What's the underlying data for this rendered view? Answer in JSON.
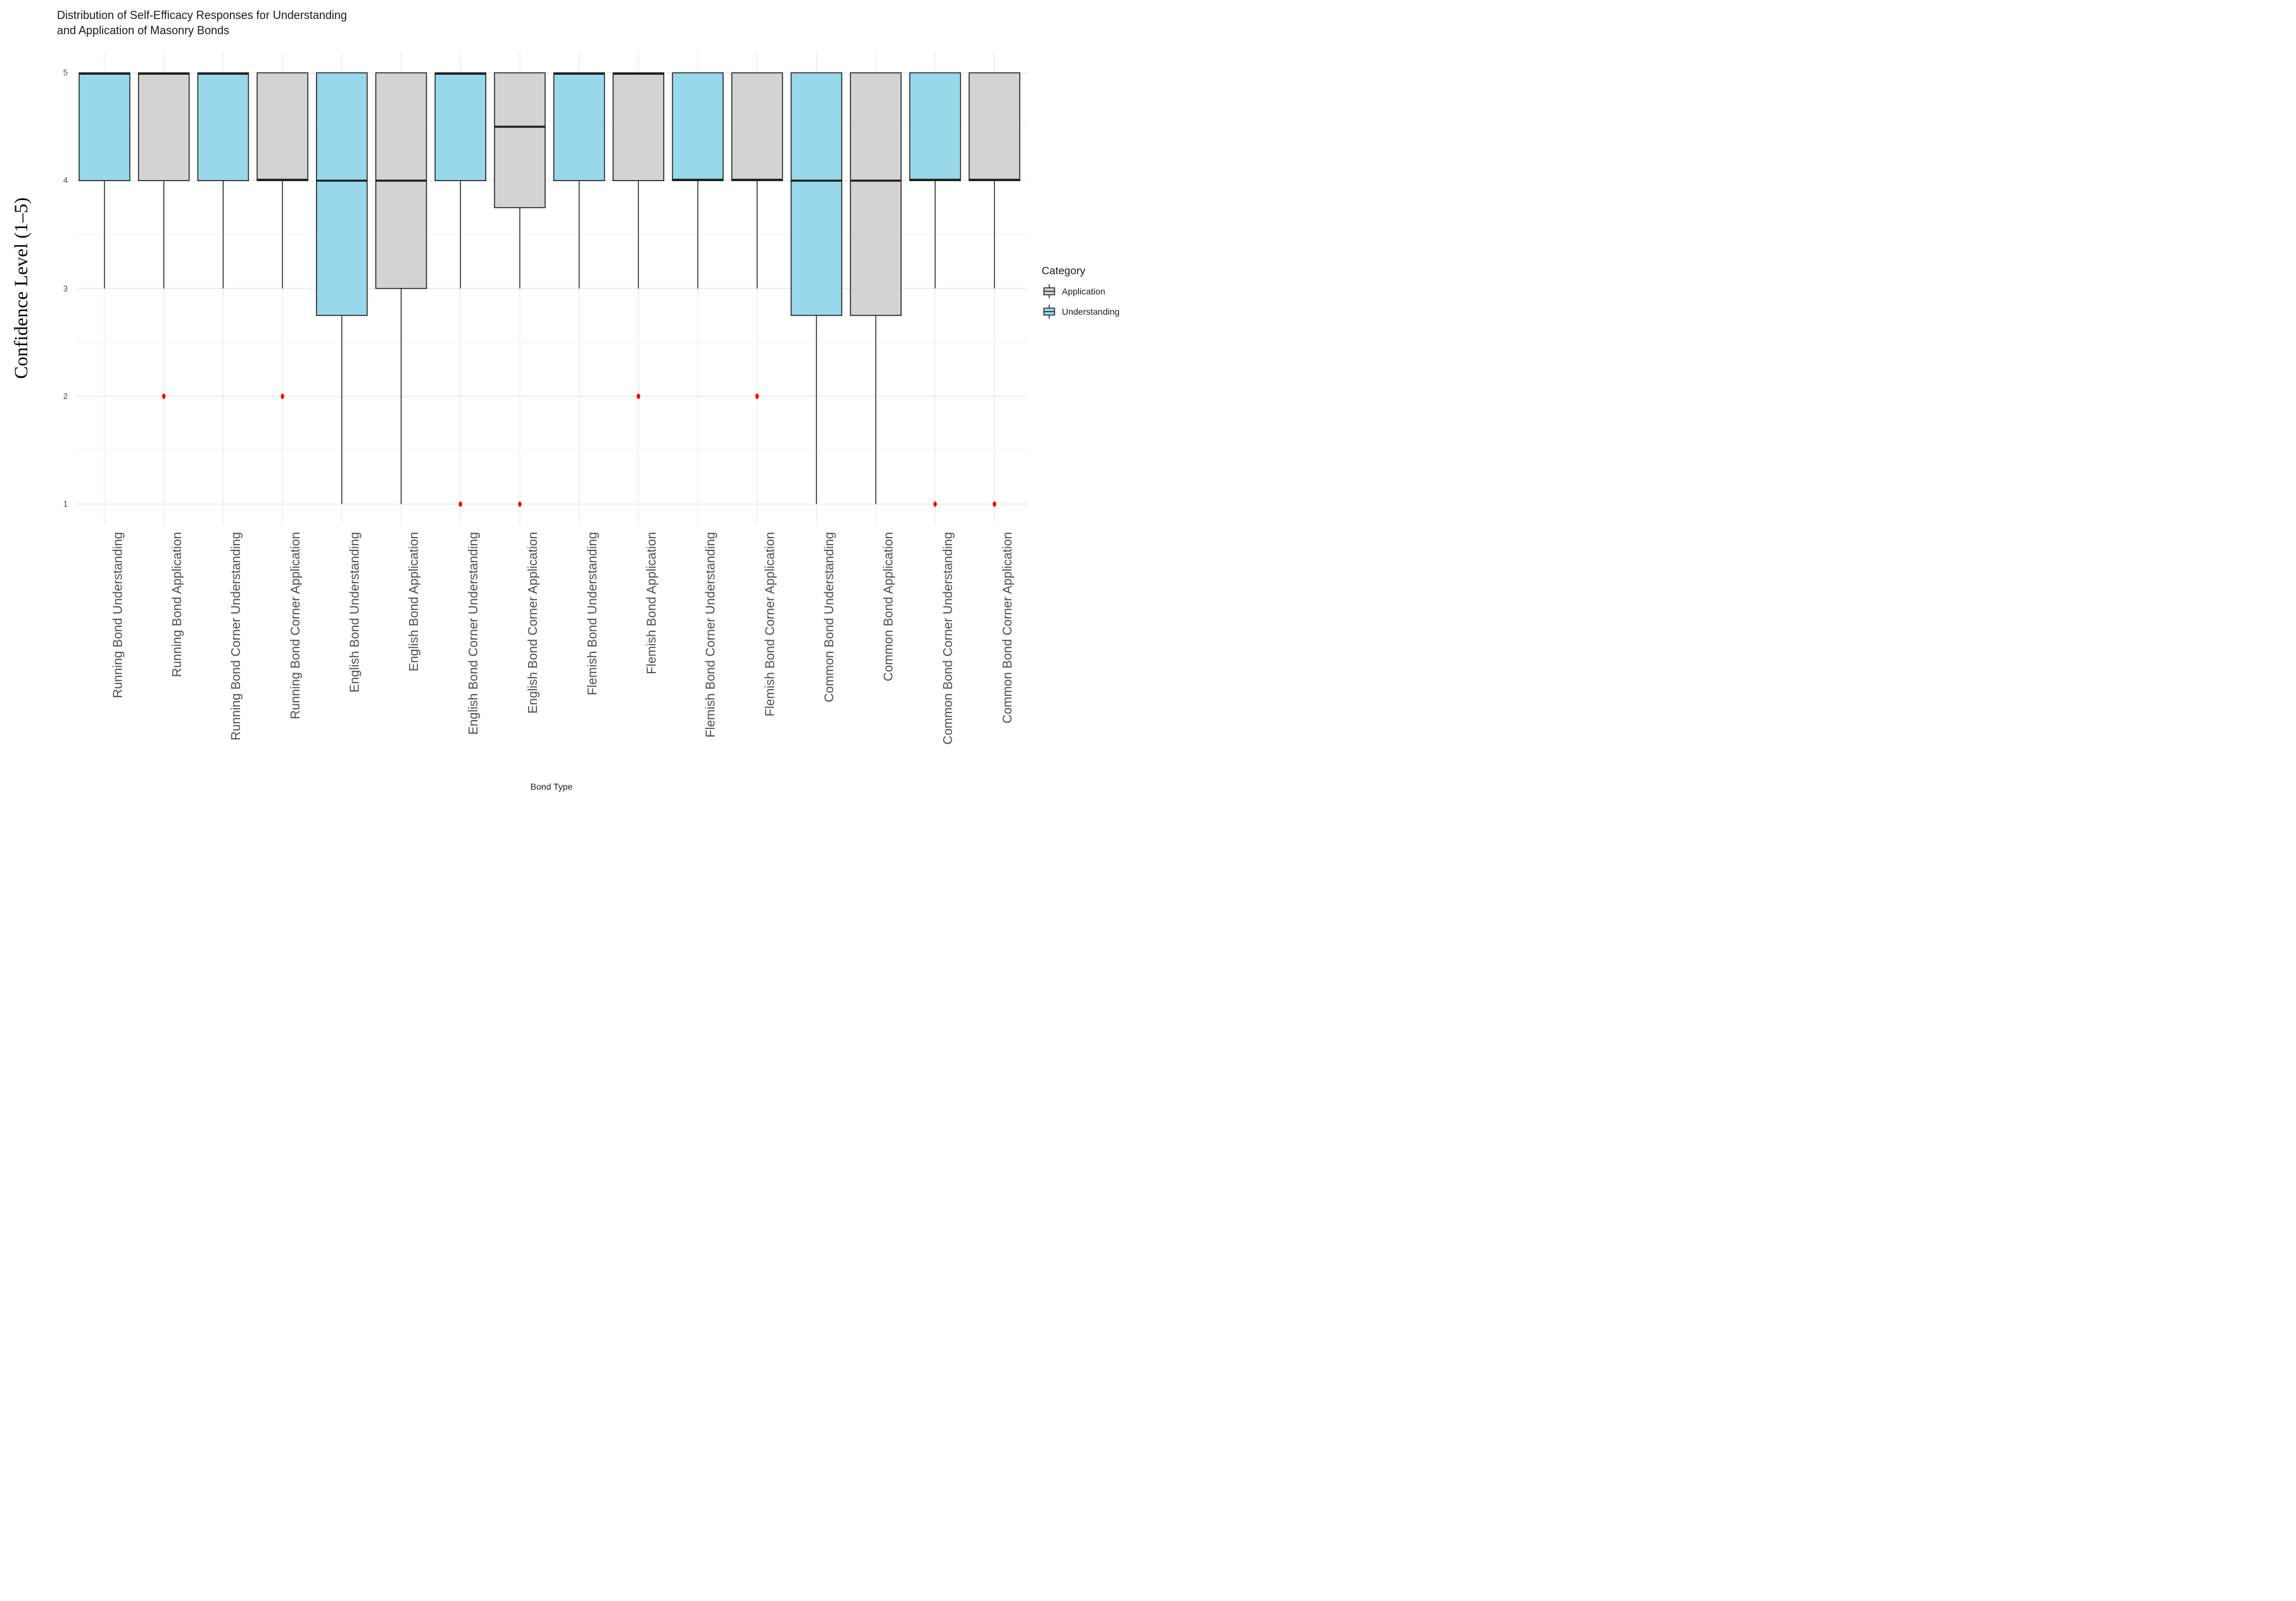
{
  "title": {
    "line1": "Distribution of Self-Efficacy Responses for Understanding",
    "line2": "and Application of Masonry Bonds"
  },
  "axes": {
    "y_title": "Confidence Level (1–5)",
    "x_title": "Bond Type",
    "y_tick_labels": [
      "5",
      "4",
      "3",
      "2",
      "1"
    ]
  },
  "legend": {
    "title": "Category",
    "items": [
      {
        "label": "Application",
        "group": "Application"
      },
      {
        "label": "Understanding",
        "group": "Understanding"
      }
    ]
  },
  "colors": {
    "groups": {
      "Understanding": "#99d8ea",
      "Application": "#d3d3d3"
    },
    "outlier": "#ff0000",
    "box_border": "#1f1f1f",
    "grid_major": "#e5e5e5",
    "grid_minor": "#f1f1f1",
    "grid_vertical": "#e8e8e8",
    "tick_text": "#4d4d4d"
  },
  "chart_data": {
    "type": "boxplot",
    "title": "Distribution of Self-Efficacy Responses for Understanding and Application of Masonry Bonds",
    "xlabel": "Bond Type",
    "ylabel": "Confidence Level (1–5)",
    "ylim": [
      1,
      5
    ],
    "yticks": [
      1,
      2,
      3,
      4,
      5
    ],
    "grid": "horizontal major+minor, vertical major",
    "legend_position": "right",
    "boxes": [
      {
        "category": "Running Bond Understanding",
        "group": "Understanding",
        "q1": 4,
        "median": 5,
        "q3": 5,
        "whisker_low": 3,
        "whisker_high": 5,
        "outliers": []
      },
      {
        "category": "Running Bond Application",
        "group": "Application",
        "q1": 4,
        "median": 5,
        "q3": 5,
        "whisker_low": 3,
        "whisker_high": 5,
        "outliers": [
          2
        ]
      },
      {
        "category": "Running Bond Corner Understanding",
        "group": "Understanding",
        "q1": 4,
        "median": 5,
        "q3": 5,
        "whisker_low": 3,
        "whisker_high": 5,
        "outliers": []
      },
      {
        "category": "Running Bond Corner Application",
        "group": "Application",
        "q1": 4,
        "median": 4,
        "q3": 5,
        "whisker_low": 3,
        "whisker_high": 5,
        "outliers": [
          2
        ]
      },
      {
        "category": "English Bond Understanding",
        "group": "Understanding",
        "q1": 2.75,
        "median": 4,
        "q3": 5,
        "whisker_low": 1,
        "whisker_high": 5,
        "outliers": []
      },
      {
        "category": "English Bond Application",
        "group": "Application",
        "q1": 3,
        "median": 4,
        "q3": 5,
        "whisker_low": 1,
        "whisker_high": 5,
        "outliers": []
      },
      {
        "category": "English Bond Corner Understanding",
        "group": "Understanding",
        "q1": 4,
        "median": 5,
        "q3": 5,
        "whisker_low": 3,
        "whisker_high": 5,
        "outliers": [
          1
        ]
      },
      {
        "category": "English Bond Corner Application",
        "group": "Application",
        "q1": 3.75,
        "median": 4.5,
        "q3": 5,
        "whisker_low": 3,
        "whisker_high": 5,
        "outliers": [
          1
        ]
      },
      {
        "category": "Flemish Bond Understanding",
        "group": "Understanding",
        "q1": 4,
        "median": 5,
        "q3": 5,
        "whisker_low": 3,
        "whisker_high": 5,
        "outliers": []
      },
      {
        "category": "Flemish Bond Application",
        "group": "Application",
        "q1": 4,
        "median": 5,
        "q3": 5,
        "whisker_low": 3,
        "whisker_high": 5,
        "outliers": [
          2
        ]
      },
      {
        "category": "Flemish Bond Corner Understanding",
        "group": "Understanding",
        "q1": 4,
        "median": 4,
        "q3": 5,
        "whisker_low": 3,
        "whisker_high": 5,
        "outliers": []
      },
      {
        "category": "Flemish Bond Corner Application",
        "group": "Application",
        "q1": 4,
        "median": 4,
        "q3": 5,
        "whisker_low": 3,
        "whisker_high": 5,
        "outliers": [
          2
        ]
      },
      {
        "category": "Common Bond Understanding",
        "group": "Understanding",
        "q1": 2.75,
        "median": 4,
        "q3": 5,
        "whisker_low": 1,
        "whisker_high": 5,
        "outliers": []
      },
      {
        "category": "Common Bond Application",
        "group": "Application",
        "q1": 2.75,
        "median": 4,
        "q3": 5,
        "whisker_low": 1,
        "whisker_high": 5,
        "outliers": []
      },
      {
        "category": "Common Bond Corner Understanding",
        "group": "Understanding",
        "q1": 4,
        "median": 4,
        "q3": 5,
        "whisker_low": 3,
        "whisker_high": 5,
        "outliers": [
          1
        ]
      },
      {
        "category": "Common Bond Corner Application",
        "group": "Application",
        "q1": 4,
        "median": 4,
        "q3": 5,
        "whisker_low": 3,
        "whisker_high": 5,
        "outliers": [
          1
        ]
      }
    ]
  }
}
